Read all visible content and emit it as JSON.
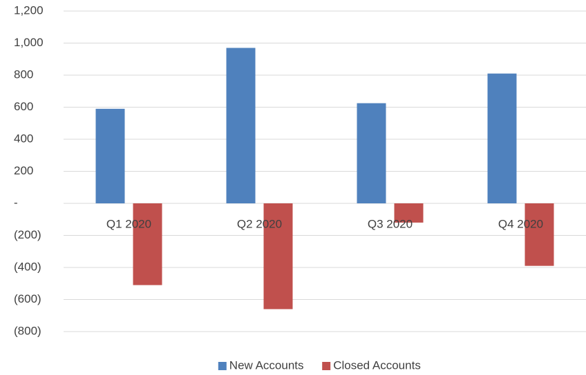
{
  "chart_data": {
    "type": "bar",
    "categories": [
      "Q1 2020",
      "Q2 2020",
      "Q3 2020",
      "Q4 2020"
    ],
    "series": [
      {
        "name": "New Accounts",
        "color": "#4f81bd",
        "values": [
          590,
          970,
          625,
          810
        ]
      },
      {
        "name": "Closed Accounts",
        "color": "#c0504d",
        "values": [
          -510,
          -660,
          -120,
          -390
        ]
      }
    ],
    "ylim": [
      -800,
      1200
    ],
    "yticks": [
      {
        "value": -800,
        "label": "(800)"
      },
      {
        "value": -600,
        "label": "(600)"
      },
      {
        "value": -400,
        "label": "(400)"
      },
      {
        "value": -200,
        "label": "(200)"
      },
      {
        "value": 0,
        "label": "-"
      },
      200,
      400,
      600,
      800,
      {
        "value": 1000,
        "label": "1,000"
      },
      {
        "value": 1200,
        "label": "1,200"
      }
    ],
    "grid": true,
    "legend": "bottom"
  }
}
